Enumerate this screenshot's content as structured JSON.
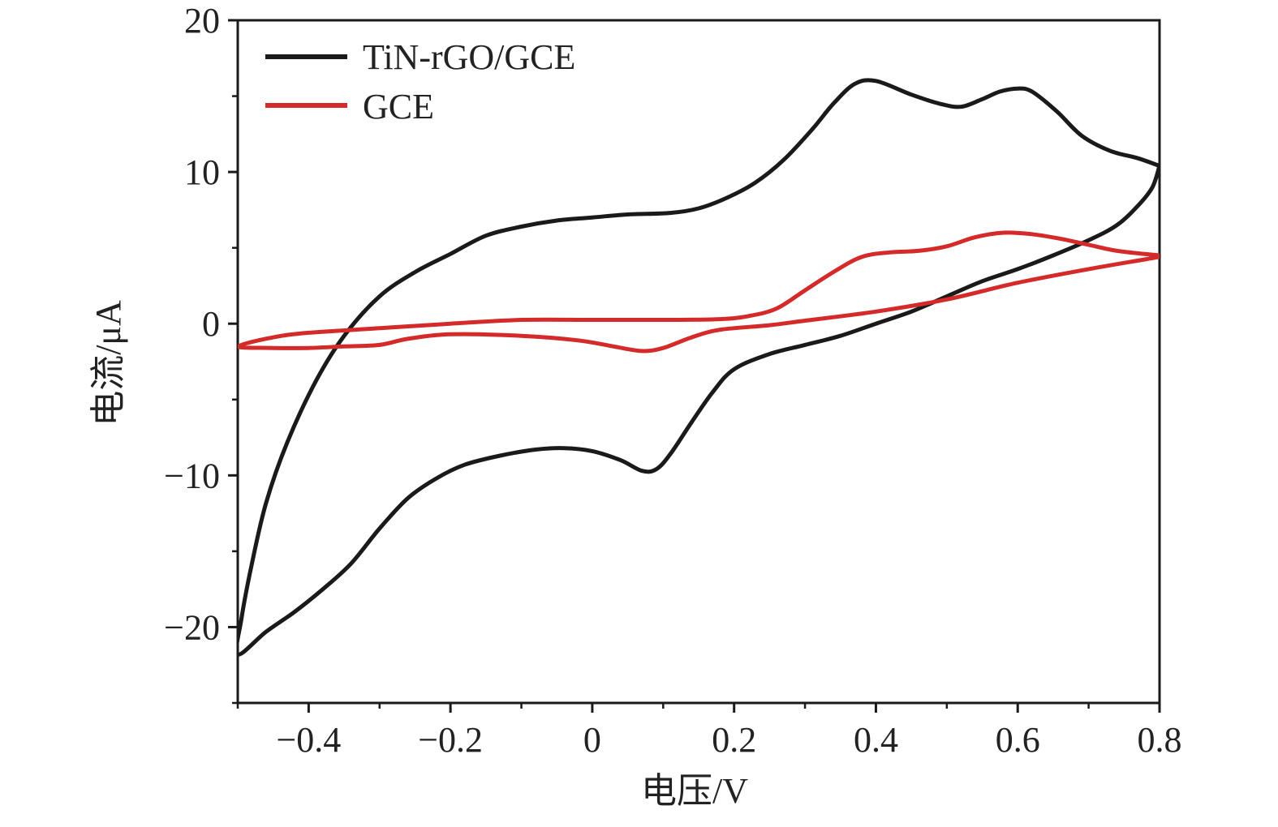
{
  "chart_data": {
    "type": "line",
    "title": "",
    "xlabel": "电压/V",
    "ylabel": "电流/μA",
    "xlim": [
      -0.5,
      0.8
    ],
    "ylim": [
      -25,
      20
    ],
    "x_ticks": [
      -0.4,
      -0.2,
      0,
      0.2,
      0.4,
      0.6,
      0.8
    ],
    "x_tick_labels": [
      "−0.4",
      "−0.2",
      "0",
      "0.2",
      "0.4",
      "0.6",
      "0.8"
    ],
    "y_ticks": [
      -20,
      -10,
      0,
      10,
      20
    ],
    "y_tick_labels": [
      "−20",
      "−10",
      "0",
      "10",
      "20"
    ],
    "grid": false,
    "legend_position": "top-left",
    "series": [
      {
        "name": "TiN-rGO/GCE",
        "color": "#1a1a1a",
        "points": [
          [
            0.8,
            10.4
          ],
          [
            0.77,
            10.9
          ],
          [
            0.73,
            11.4
          ],
          [
            0.69,
            12.4
          ],
          [
            0.655,
            14.0
          ],
          [
            0.62,
            15.3
          ],
          [
            0.6,
            15.5
          ],
          [
            0.575,
            15.3
          ],
          [
            0.55,
            14.8
          ],
          [
            0.52,
            14.3
          ],
          [
            0.49,
            14.5
          ],
          [
            0.45,
            15.1
          ],
          [
            0.4,
            16.0
          ],
          [
            0.37,
            15.8
          ],
          [
            0.34,
            14.5
          ],
          [
            0.31,
            12.8
          ],
          [
            0.27,
            10.8
          ],
          [
            0.23,
            9.3
          ],
          [
            0.19,
            8.3
          ],
          [
            0.15,
            7.6
          ],
          [
            0.11,
            7.3
          ],
          [
            0.05,
            7.2
          ],
          [
            0.0,
            7.0
          ],
          [
            -0.05,
            6.8
          ],
          [
            -0.1,
            6.4
          ],
          [
            -0.15,
            5.8
          ],
          [
            -0.2,
            4.6
          ],
          [
            -0.25,
            3.4
          ],
          [
            -0.3,
            1.8
          ],
          [
            -0.35,
            -0.8
          ],
          [
            -0.39,
            -3.8
          ],
          [
            -0.43,
            -7.8
          ],
          [
            -0.46,
            -11.8
          ],
          [
            -0.48,
            -15.8
          ],
          [
            -0.495,
            -19.5
          ],
          [
            -0.5,
            -21.8
          ],
          [
            -0.46,
            -20.3
          ],
          [
            -0.42,
            -19.0
          ],
          [
            -0.38,
            -17.5
          ],
          [
            -0.34,
            -15.8
          ],
          [
            -0.3,
            -13.5
          ],
          [
            -0.26,
            -11.5
          ],
          [
            -0.22,
            -10.2
          ],
          [
            -0.18,
            -9.3
          ],
          [
            -0.13,
            -8.7
          ],
          [
            -0.08,
            -8.3
          ],
          [
            -0.04,
            -8.2
          ],
          [
            0.0,
            -8.4
          ],
          [
            0.04,
            -9.0
          ],
          [
            0.07,
            -9.7
          ],
          [
            0.09,
            -9.6
          ],
          [
            0.11,
            -8.6
          ],
          [
            0.14,
            -6.5
          ],
          [
            0.17,
            -4.5
          ],
          [
            0.2,
            -3.0
          ],
          [
            0.25,
            -2.0
          ],
          [
            0.3,
            -1.4
          ],
          [
            0.35,
            -0.8
          ],
          [
            0.4,
            0.0
          ],
          [
            0.45,
            0.8
          ],
          [
            0.5,
            1.8
          ],
          [
            0.55,
            2.8
          ],
          [
            0.6,
            3.6
          ],
          [
            0.65,
            4.5
          ],
          [
            0.7,
            5.5
          ],
          [
            0.74,
            6.5
          ],
          [
            0.77,
            7.8
          ],
          [
            0.79,
            9.0
          ],
          [
            0.8,
            10.4
          ]
        ]
      },
      {
        "name": "GCE",
        "color": "#d42a2a",
        "points": [
          [
            0.8,
            4.5
          ],
          [
            0.74,
            4.8
          ],
          [
            0.7,
            5.2
          ],
          [
            0.66,
            5.6
          ],
          [
            0.62,
            5.9
          ],
          [
            0.58,
            6.0
          ],
          [
            0.54,
            5.7
          ],
          [
            0.5,
            5.1
          ],
          [
            0.46,
            4.8
          ],
          [
            0.42,
            4.7
          ],
          [
            0.38,
            4.4
          ],
          [
            0.34,
            3.4
          ],
          [
            0.3,
            2.2
          ],
          [
            0.26,
            1.0
          ],
          [
            0.22,
            0.5
          ],
          [
            0.18,
            0.3
          ],
          [
            0.1,
            0.25
          ],
          [
            0.0,
            0.25
          ],
          [
            -0.1,
            0.25
          ],
          [
            -0.2,
            0.0
          ],
          [
            -0.3,
            -0.3
          ],
          [
            -0.4,
            -0.6
          ],
          [
            -0.45,
            -0.9
          ],
          [
            -0.5,
            -1.5
          ],
          [
            -0.45,
            -1.6
          ],
          [
            -0.4,
            -1.6
          ],
          [
            -0.35,
            -1.5
          ],
          [
            -0.3,
            -1.4
          ],
          [
            -0.26,
            -1.0
          ],
          [
            -0.2,
            -0.7
          ],
          [
            -0.1,
            -0.8
          ],
          [
            -0.02,
            -1.1
          ],
          [
            0.03,
            -1.5
          ],
          [
            0.07,
            -1.8
          ],
          [
            0.1,
            -1.6
          ],
          [
            0.14,
            -0.9
          ],
          [
            0.18,
            -0.4
          ],
          [
            0.25,
            -0.1
          ],
          [
            0.3,
            0.2
          ],
          [
            0.4,
            0.8
          ],
          [
            0.5,
            1.6
          ],
          [
            0.6,
            2.7
          ],
          [
            0.7,
            3.6
          ],
          [
            0.8,
            4.4
          ]
        ]
      }
    ]
  }
}
